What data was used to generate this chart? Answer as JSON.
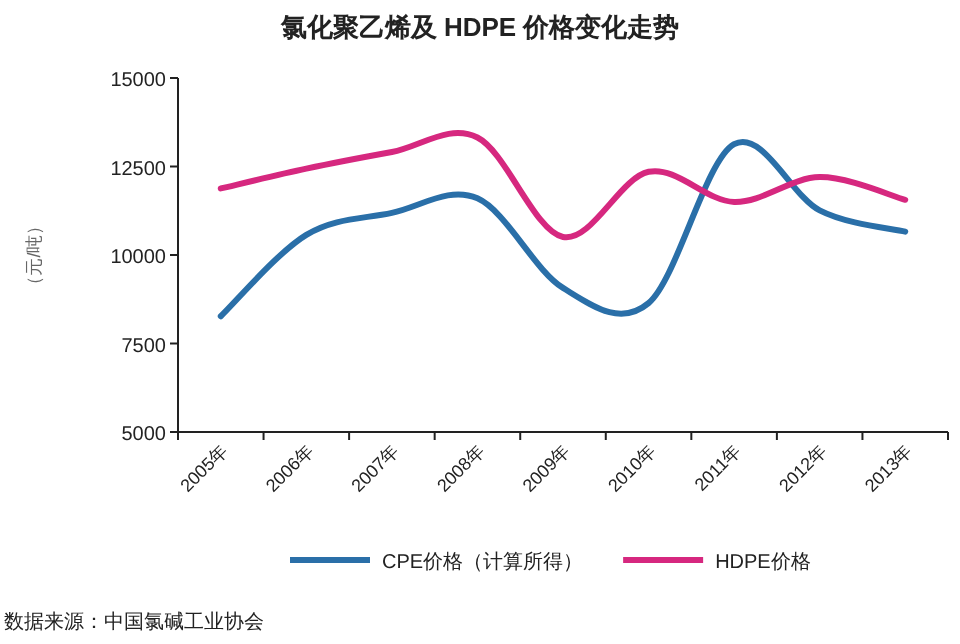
{
  "chart_data": {
    "type": "line",
    "title": "氯化聚乙烯及 HDPE 价格变化走势",
    "ylabel": "（元/吨）",
    "categories": [
      "2005年",
      "2006年",
      "2007年",
      "2008年",
      "2009年",
      "2010年",
      "2011年",
      "2012年",
      "2013年"
    ],
    "series": [
      {
        "name": "CPE价格（计算所得）",
        "color": "#2a6fa8",
        "values": [
          8270,
          10570,
          11190,
          11600,
          9070,
          8640,
          13130,
          11260,
          10660
        ]
      },
      {
        "name": "HDPE价格",
        "color": "#d6287f",
        "values": [
          11880,
          12440,
          12910,
          13320,
          10510,
          12350,
          11500,
          12200,
          11560
        ]
      }
    ],
    "ylim": [
      5000,
      15000
    ],
    "yticks": [
      5000,
      7500,
      10000,
      12500,
      15000
    ],
    "grid": false,
    "legend": "bottom",
    "marker": "none",
    "line_style": "solid",
    "annotations": [
      "数据来源：中国氯碱工业协会"
    ]
  }
}
